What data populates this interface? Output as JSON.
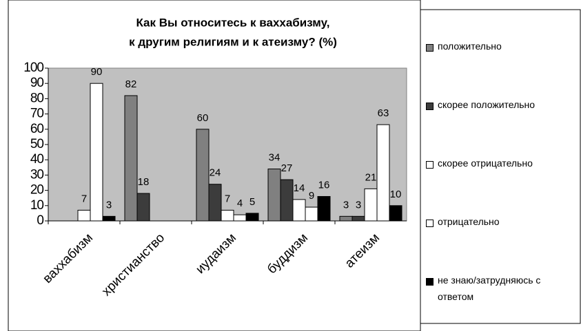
{
  "chart_data": {
    "type": "bar",
    "title": [
      "Как Вы относитесь к ваххабизму,",
      "к другим религиям и к атеизму? (%)"
    ],
    "categories": [
      "ваххабизм",
      "христианство",
      "иудаизм",
      "буддизм",
      "атеизм"
    ],
    "series": [
      {
        "name": "положительно",
        "color": "#808080",
        "values": [
          null,
          82,
          60,
          34,
          3
        ]
      },
      {
        "name": "скорее положительно",
        "color": "#3c3c3c",
        "values": [
          null,
          18,
          24,
          27,
          3
        ]
      },
      {
        "name": "скорее отрицательно",
        "color": "#ffffff",
        "values": [
          7,
          null,
          7,
          14,
          21
        ]
      },
      {
        "name": "отрицательно",
        "color": "#ffffff",
        "values": [
          90,
          null,
          4,
          9,
          63
        ]
      },
      {
        "name": "не знаю/затрудняюсь с ответом",
        "color": "#000000",
        "values": [
          3,
          null,
          5,
          16,
          10
        ]
      }
    ],
    "ylim": [
      0,
      100
    ],
    "yticks": [
      0,
      10,
      20,
      30,
      40,
      50,
      60,
      70,
      80,
      90,
      100
    ],
    "plot_background": "#c0c0c0",
    "legend": "right"
  }
}
